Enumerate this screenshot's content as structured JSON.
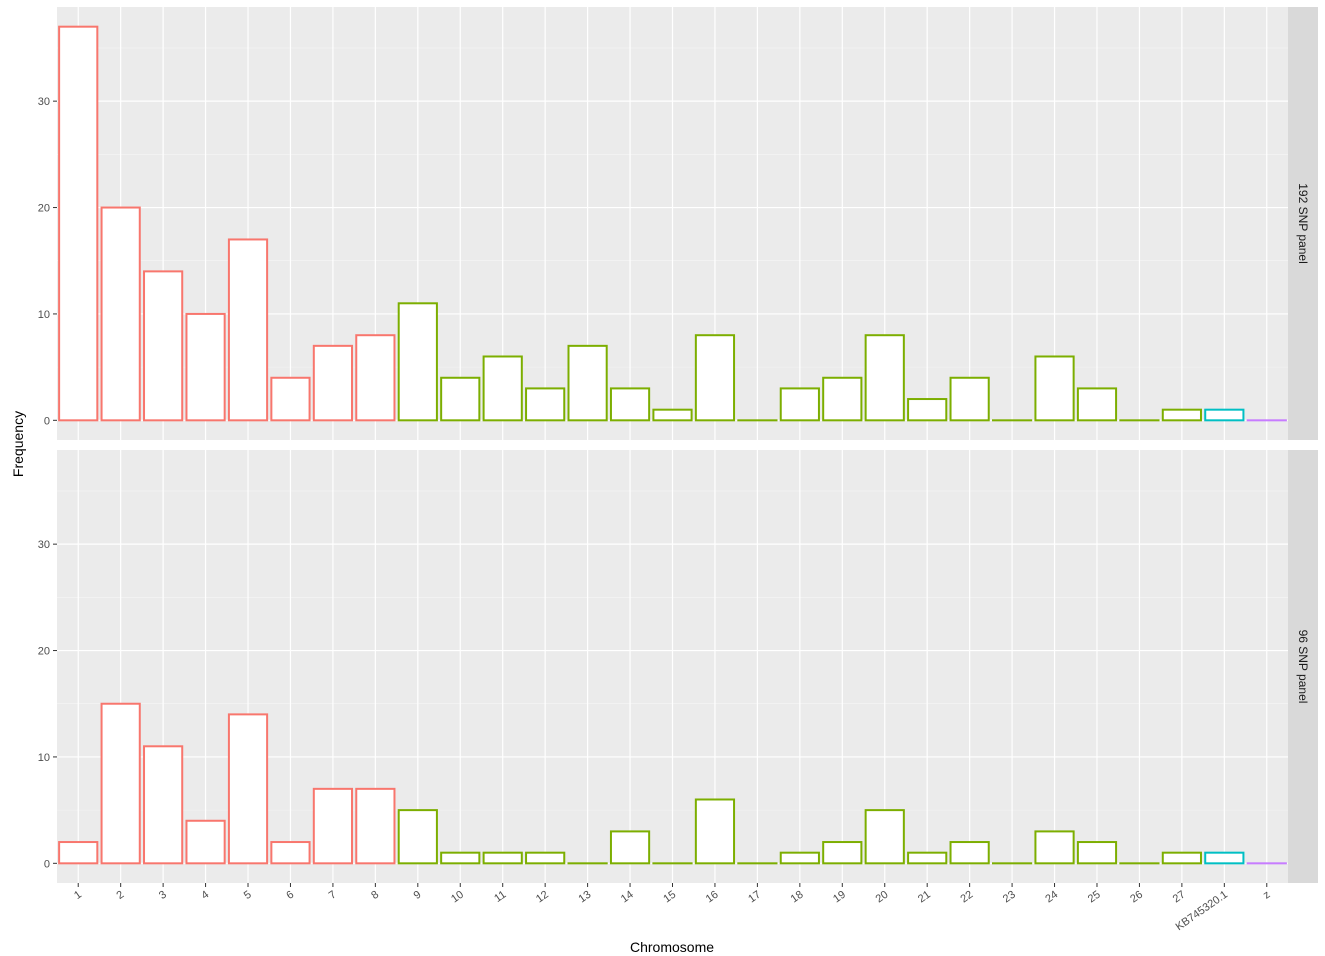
{
  "chart_data": {
    "type": "bar",
    "xlabel": "Chromosome",
    "ylabel": "Frequency",
    "ylim": [
      0,
      37
    ],
    "y_ticks": [
      "0",
      "10",
      "20",
      "30"
    ],
    "categories": [
      "1",
      "2",
      "3",
      "4",
      "5",
      "6",
      "7",
      "8",
      "9",
      "10",
      "11",
      "12",
      "13",
      "14",
      "15",
      "16",
      "17",
      "18",
      "19",
      "20",
      "21",
      "22",
      "23",
      "24",
      "25",
      "26",
      "27",
      "KB745320.1",
      "z"
    ],
    "category_groups": [
      0,
      0,
      0,
      0,
      0,
      0,
      0,
      0,
      1,
      1,
      1,
      1,
      1,
      1,
      1,
      1,
      1,
      1,
      1,
      1,
      1,
      1,
      1,
      1,
      1,
      1,
      1,
      2,
      3
    ],
    "group_colors": [
      "#f8766d",
      "#7cae00",
      "#00bfc4",
      "#c77cff"
    ],
    "legend": "none",
    "grid": true,
    "panels": [
      {
        "label": "192 SNP panel",
        "values": [
          37,
          20,
          14,
          10,
          17,
          4,
          7,
          8,
          11,
          4,
          6,
          3,
          7,
          3,
          1,
          8,
          0,
          3,
          4,
          8,
          2,
          4,
          0,
          6,
          3,
          0,
          1,
          1,
          0
        ]
      },
      {
        "label": "96 SNP panel",
        "values": [
          2,
          15,
          11,
          4,
          14,
          2,
          7,
          7,
          5,
          1,
          1,
          1,
          0,
          3,
          0,
          6,
          0,
          1,
          2,
          5,
          1,
          2,
          0,
          3,
          2,
          0,
          1,
          1,
          0
        ]
      }
    ]
  }
}
